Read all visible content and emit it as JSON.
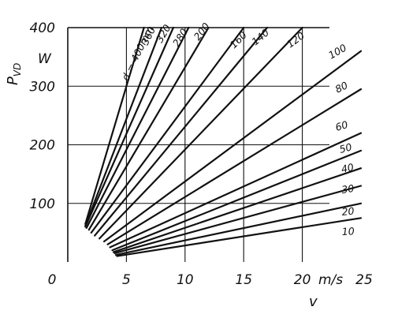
{
  "chart_data": {
    "type": "line",
    "xlabel": "v",
    "xunit": "m/s",
    "ylabel": "P",
    "ylabel_sub": "VD",
    "yunit": "W",
    "xlim": [
      0,
      25
    ],
    "ylim": [
      0,
      400
    ],
    "xticks": [
      "0",
      "5",
      "10",
      "15",
      "20",
      "25"
    ],
    "yticks": [
      "100",
      "200",
      "300",
      "400"
    ],
    "grid": true,
    "series": [
      {
        "name": "d = 400mm",
        "points": [
          [
            1.5,
            65
          ],
          [
            5.0,
            300
          ],
          [
            6.5,
            400
          ]
        ]
      },
      {
        "name": "360",
        "points": [
          [
            1.5,
            62
          ],
          [
            8.0,
            400
          ]
        ]
      },
      {
        "name": "320",
        "points": [
          [
            1.5,
            60
          ],
          [
            9.0,
            400
          ]
        ]
      },
      {
        "name": "280",
        "points": [
          [
            1.6,
            58
          ],
          [
            10.3,
            400
          ]
        ]
      },
      {
        "name": "200",
        "points": [
          [
            1.8,
            55
          ],
          [
            12.0,
            400
          ]
        ]
      },
      {
        "name": "160",
        "points": [
          [
            2.0,
            50
          ],
          [
            15.0,
            400
          ]
        ]
      },
      {
        "name": "140",
        "points": [
          [
            2.3,
            45
          ],
          [
            17.0,
            400
          ]
        ]
      },
      {
        "name": "120",
        "points": [
          [
            2.7,
            40
          ],
          [
            20.0,
            400
          ]
        ]
      },
      {
        "name": "100",
        "points": [
          [
            3.1,
            35
          ],
          [
            25.0,
            360
          ]
        ]
      },
      {
        "name": "80",
        "points": [
          [
            3.4,
            30
          ],
          [
            25.0,
            295
          ]
        ]
      },
      {
        "name": "60",
        "points": [
          [
            3.6,
            25
          ],
          [
            25.0,
            220
          ]
        ]
      },
      {
        "name": "50",
        "points": [
          [
            3.8,
            20
          ],
          [
            25.0,
            190
          ]
        ]
      },
      {
        "name": "40",
        "points": [
          [
            3.9,
            17
          ],
          [
            25.0,
            160
          ]
        ]
      },
      {
        "name": "30",
        "points": [
          [
            4.0,
            15
          ],
          [
            25.0,
            130
          ]
        ]
      },
      {
        "name": "20",
        "points": [
          [
            4.1,
            12
          ],
          [
            25.0,
            100
          ]
        ]
      },
      {
        "name": "10",
        "points": [
          [
            4.2,
            10
          ],
          [
            25.0,
            75
          ]
        ]
      }
    ]
  }
}
